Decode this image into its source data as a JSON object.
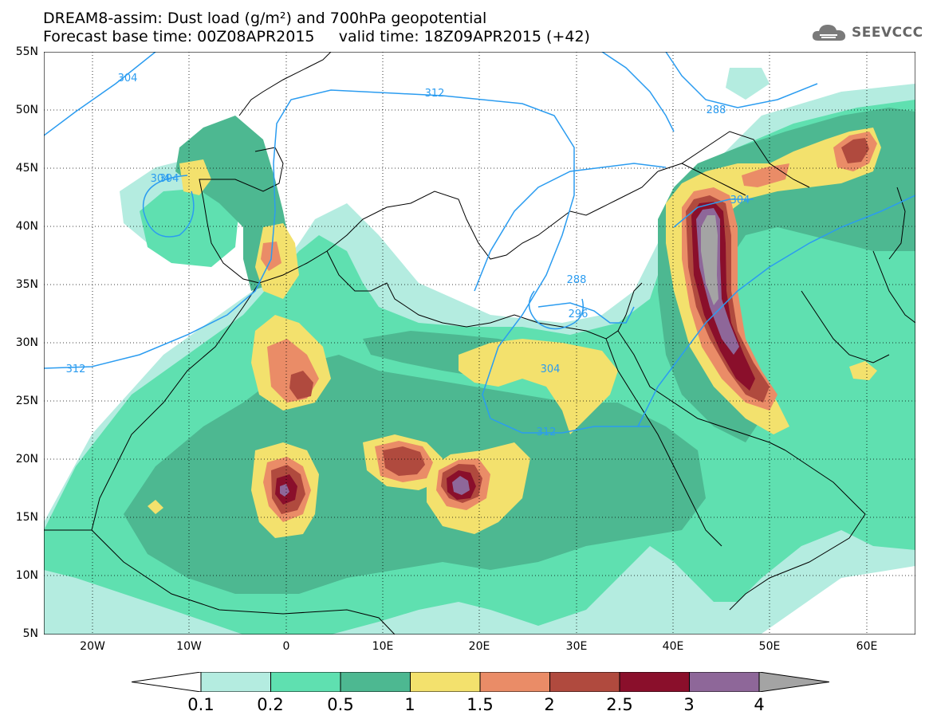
{
  "header": {
    "line1": "DREAM8-assim: Dust load (g/m²) and 700hPa geopotential",
    "line2_left": "Forecast base time: 00Z08APR2015",
    "line2_right": "valid time: 18Z09APR2015 (+42)"
  },
  "logo": {
    "icon": "cloud-logo-icon",
    "text": "SEEVCCC"
  },
  "map": {
    "lat_labels": [
      "55N",
      "50N",
      "45N",
      "40N",
      "35N",
      "30N",
      "25N",
      "20N",
      "15N",
      "10N",
      "5N"
    ],
    "lon_labels": [
      "20W",
      "10W",
      "0",
      "10E",
      "20E",
      "30E",
      "40E",
      "50E",
      "60E"
    ],
    "contour_labels": [
      "304",
      "304",
      "312",
      "312",
      "304",
      "288",
      "296",
      "304",
      "312",
      "288",
      "304"
    ],
    "colors": {
      "c1": "#b4ece0",
      "c2": "#5fe0b0",
      "c3": "#4db891",
      "c4": "#f3e16d",
      "c5": "#ea8c67",
      "c6": "#b04a3e",
      "c7": "#8a0f2b",
      "c8": "#8e6799",
      "c9": "#a4a4a4",
      "contour": "#2b9cf0"
    }
  },
  "colorbar": {
    "labels": [
      "0.1",
      "0.2",
      "0.5",
      "1",
      "1.5",
      "2",
      "2.5",
      "3",
      "4"
    ],
    "colors": [
      "#ffffff",
      "#b4ece0",
      "#5fe0b0",
      "#4db891",
      "#f3e16d",
      "#ea8c67",
      "#b04a3e",
      "#8a0f2b",
      "#8e6799",
      "#a4a4a4"
    ]
  }
}
